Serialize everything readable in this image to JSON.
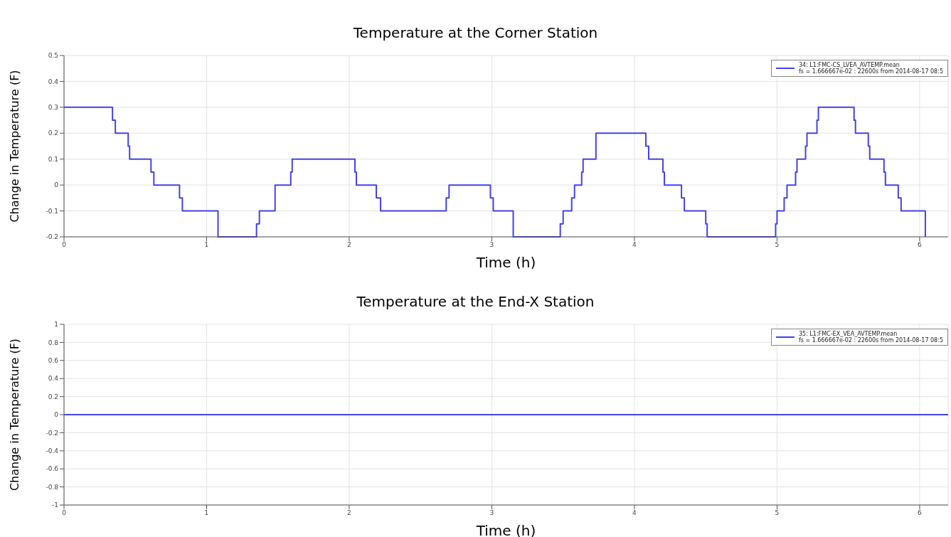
{
  "chart_data": [
    {
      "type": "step",
      "title": "Temperature at the Corner Station",
      "xlabel": "Time (h)",
      "ylabel": "Change in Temperature (F)",
      "xlim": [
        0,
        6.2
      ],
      "xticks": [
        0,
        1,
        2,
        3,
        4,
        5,
        6
      ],
      "ylim": [
        -0.2,
        0.5
      ],
      "yticks": [
        -0.2,
        -0.1,
        0,
        0.1,
        0.2,
        0.3,
        0.4,
        0.5
      ],
      "grid": true,
      "legend": "top right",
      "x": [
        0,
        0.34,
        0.36,
        0.45,
        0.46,
        0.61,
        0.63,
        0.81,
        0.83,
        1.08,
        1.35,
        1.37,
        1.48,
        1.59,
        1.6,
        2.04,
        2.05,
        2.19,
        2.22,
        2.68,
        2.7,
        2.99,
        3.01,
        3.15,
        3.48,
        3.5,
        3.56,
        3.58,
        3.63,
        3.64,
        3.73,
        4.08,
        4.1,
        4.2,
        4.21,
        4.33,
        4.35,
        4.5,
        4.51,
        4.99,
        5.0,
        5.05,
        5.07,
        5.13,
        5.14,
        5.2,
        5.21,
        5.28,
        5.29,
        5.54,
        5.55,
        5.64,
        5.65,
        5.75,
        5.76,
        5.85,
        5.87,
        6.04
      ],
      "series": [
        {
          "name": "34: L1:FMC-CS_LVEA_AVTEMP.mean\nfs = 1.666667e-02 : 22600s from 2014-08-17 08:5",
          "color": "#4343e6",
          "values": [
            0.3,
            0.25,
            0.2,
            0.15,
            0.1,
            0.05,
            0,
            -0.05,
            -0.1,
            -0.2,
            -0.15,
            -0.1,
            0,
            0.05,
            0.1,
            0.05,
            0,
            -0.05,
            -0.1,
            -0.05,
            0,
            -0.05,
            -0.1,
            -0.2,
            -0.15,
            -0.1,
            -0.05,
            0,
            0.05,
            0.1,
            0.2,
            0.15,
            0.1,
            0.05,
            0,
            -0.05,
            -0.1,
            -0.15,
            -0.2,
            -0.15,
            -0.1,
            -0.05,
            0,
            0.05,
            0.1,
            0.15,
            0.2,
            0.25,
            0.3,
            0.25,
            0.2,
            0.15,
            0.1,
            0.05,
            0,
            -0.05,
            -0.1,
            -0.2
          ]
        }
      ]
    },
    {
      "type": "step",
      "title": "Temperature at the End-X Station",
      "xlabel": "Time (h)",
      "ylabel": "Change in Temperature (F)",
      "xlim": [
        0,
        6.2
      ],
      "xticks": [
        0,
        1,
        2,
        3,
        4,
        5,
        6
      ],
      "ylim": [
        -1,
        1
      ],
      "yticks": [
        -1,
        -0.8,
        -0.6,
        -0.4,
        -0.2,
        0,
        0.2,
        0.4,
        0.6,
        0.8,
        1
      ],
      "grid": true,
      "legend": "top right",
      "x": [
        0,
        6.2
      ],
      "series": [
        {
          "name": "35: L1:FMC-EX_VEA_AVTEMP.mean\nfs = 1.666667e-02 : 22600s from 2014-08-17 08:5",
          "color": "#4343e6",
          "values": [
            0,
            0
          ]
        }
      ]
    }
  ]
}
